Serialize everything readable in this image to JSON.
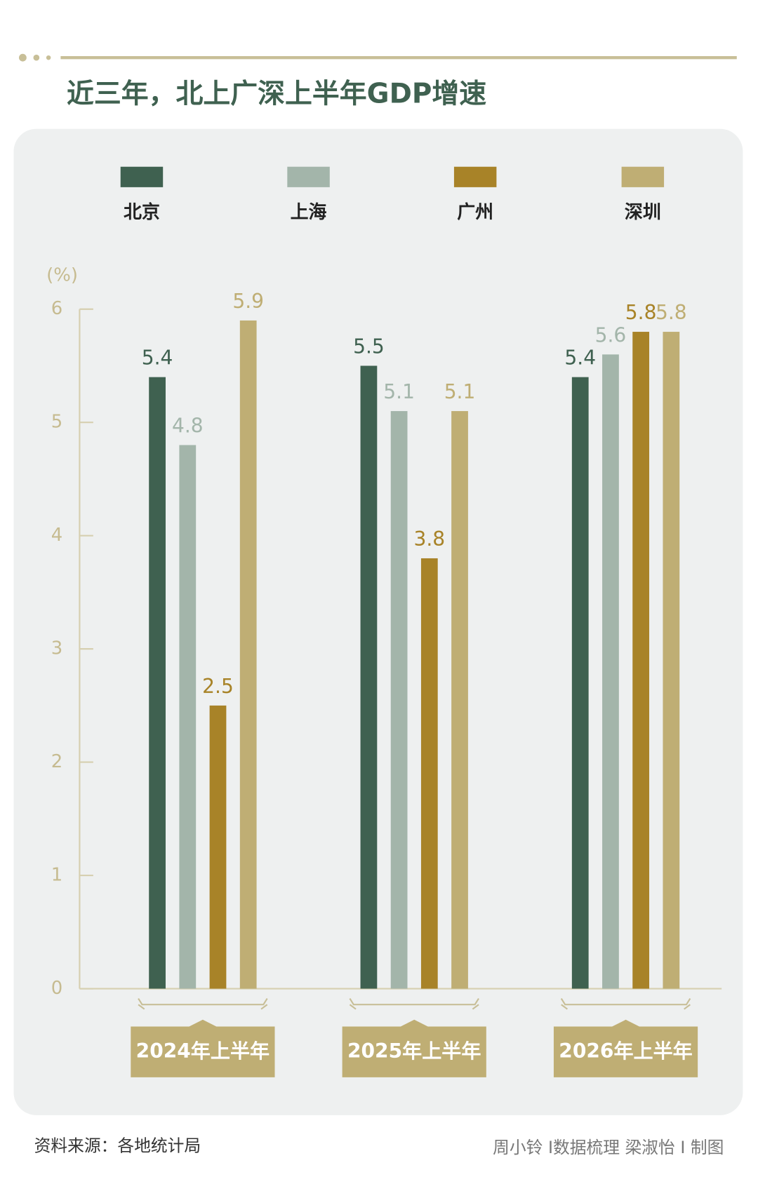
{
  "chart_data": {
    "type": "bar",
    "title": "近三年，北上广深上半年GDP增速",
    "y_label": "(%)",
    "categories": [
      "2024年上半年",
      "2025年上半年",
      "2026年上半年"
    ],
    "series": [
      {
        "name": "北京",
        "color": "#3f6150",
        "values": [
          5.4,
          5.5,
          5.4
        ]
      },
      {
        "name": "上海",
        "color": "#a3b5aa",
        "values": [
          4.8,
          5.1,
          5.6
        ]
      },
      {
        "name": "广州",
        "color": "#a88328",
        "values": [
          2.5,
          3.8,
          5.8
        ]
      },
      {
        "name": "深圳",
        "color": "#bfae74",
        "values": [
          5.9,
          5.1,
          5.8
        ]
      }
    ],
    "ylim": [
      0,
      6
    ],
    "yticks": [
      0,
      1,
      2,
      3,
      4,
      5,
      6
    ],
    "source": "资料来源：各地统计局",
    "credit": "周小铃 I数据梳理  梁淑怡 I 制图"
  }
}
